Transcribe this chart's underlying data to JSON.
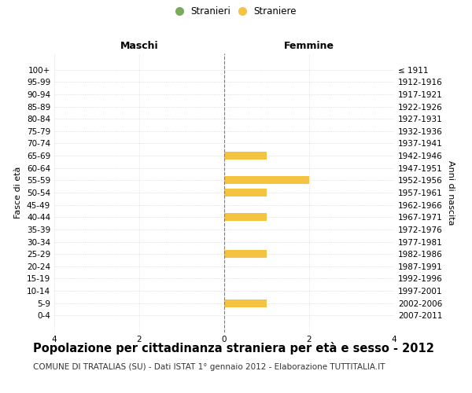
{
  "age_groups": [
    "100+",
    "95-99",
    "90-94",
    "85-89",
    "80-84",
    "75-79",
    "70-74",
    "65-69",
    "60-64",
    "55-59",
    "50-54",
    "45-49",
    "40-44",
    "35-39",
    "30-34",
    "25-29",
    "20-24",
    "15-19",
    "10-14",
    "5-9",
    "0-4"
  ],
  "birth_years": [
    "≤ 1911",
    "1912-1916",
    "1917-1921",
    "1922-1926",
    "1927-1931",
    "1932-1936",
    "1937-1941",
    "1942-1946",
    "1947-1951",
    "1952-1956",
    "1957-1961",
    "1962-1966",
    "1967-1971",
    "1972-1976",
    "1977-1981",
    "1982-1986",
    "1987-1991",
    "1992-1996",
    "1997-2001",
    "2002-2006",
    "2007-2011"
  ],
  "males": [
    0,
    0,
    0,
    0,
    0,
    0,
    0,
    0,
    0,
    0,
    0,
    0,
    0,
    0,
    0,
    0,
    0,
    0,
    0,
    0,
    0
  ],
  "females": [
    0,
    0,
    0,
    0,
    0,
    0,
    0,
    1,
    0,
    2,
    1,
    0,
    1,
    0,
    0,
    1,
    0,
    0,
    0,
    1,
    0
  ],
  "male_color": "#7aab5b",
  "female_color": "#f5c342",
  "background_color": "#ffffff",
  "grid_color": "#cccccc",
  "center_line_color": "#808060",
  "xlim": 4,
  "title": "Popolazione per cittadinanza straniera per età e sesso - 2012",
  "subtitle": "COMUNE DI TRATALIAS (SU) - Dati ISTAT 1° gennaio 2012 - Elaborazione TUTTITALIA.IT",
  "ylabel_left": "Fasce di età",
  "ylabel_right": "Anni di nascita",
  "header_left": "Maschi",
  "header_right": "Femmine",
  "legend_male": "Stranieri",
  "legend_female": "Straniere",
  "title_fontsize": 10.5,
  "subtitle_fontsize": 7.5,
  "label_fontsize": 8,
  "tick_fontsize": 7.5,
  "header_fontsize": 9
}
